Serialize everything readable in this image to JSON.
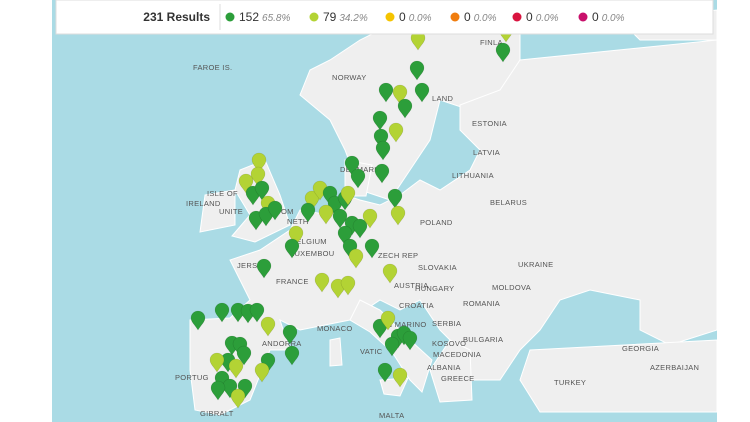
{
  "results_bar": {
    "total": "231 Results",
    "items": [
      {
        "count": "152",
        "percent": "65.8%",
        "color": "#2c9e3a"
      },
      {
        "count": "79",
        "percent": "34.2%",
        "color": "#b3d334"
      },
      {
        "count": "0",
        "percent": "0.0%",
        "color": "#f5c400"
      },
      {
        "count": "0",
        "percent": "0.0%",
        "color": "#f07d0e"
      },
      {
        "count": "0",
        "percent": "0.0%",
        "color": "#d9143f"
      },
      {
        "count": "0",
        "percent": "0.0%",
        "color": "#c8106b"
      }
    ]
  },
  "map": {
    "labels": [
      "FAROE IS.",
      "NORWAY",
      "FINLA",
      "LAND",
      "ESTONIA",
      "LATVIA",
      "LITHUANIA",
      "DENMARK",
      "BELARUS",
      "ISLE OF",
      "IRELAND",
      "UNITE",
      "OM",
      "POLAND",
      "BELGIUM",
      "LUXEMBOU",
      "ZECH REP",
      "SLOVAKIA",
      "UKRAINE",
      "JERSEY",
      "FRANCE",
      "AUSTRIA",
      "HUNGARY",
      "MOLDOVA",
      "ROMANIA",
      "CROATIA",
      "SAN MARINO",
      "MONACO",
      "SERBIA",
      "BULGARIA",
      "ANDORRA",
      "VATIC",
      "KOSOVO",
      "MACEDONIA",
      "ALBANIA",
      "GREECE",
      "GEORGIA",
      "PORTUG",
      "TURKEY",
      "AZERBAIJAN",
      "MALTA",
      "GIBRALT",
      "NETH"
    ]
  }
}
